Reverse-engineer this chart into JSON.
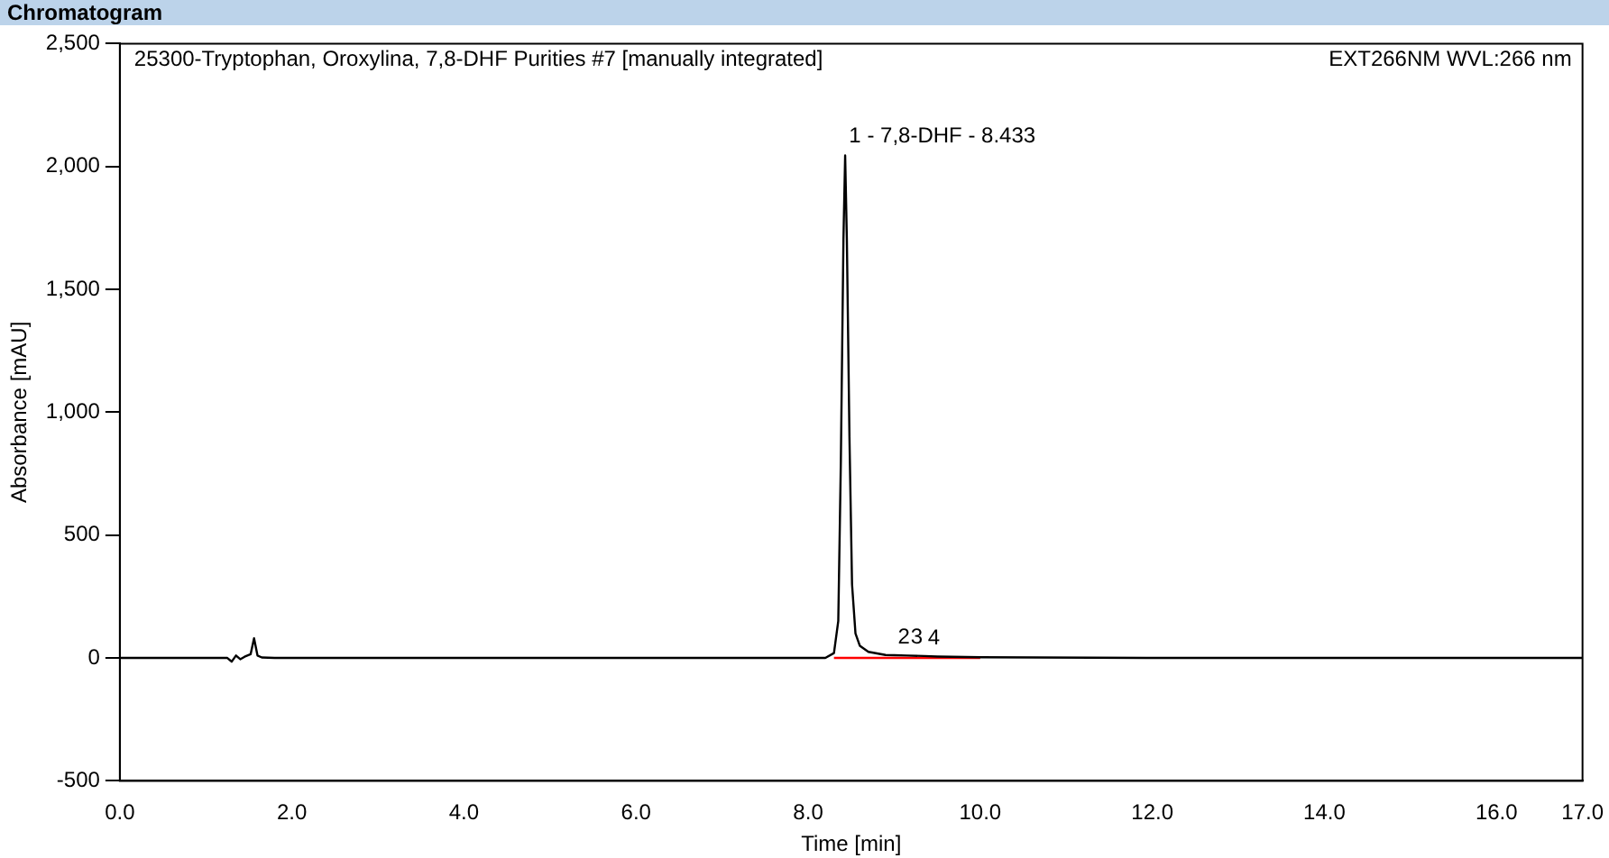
{
  "chart_data": {
    "type": "line",
    "title": "Chromatogram",
    "subtitle": "25300-Tryptophan, Oroxylina, 7,8-DHF Purities #7 [manually integrated]",
    "xlabel": "Time [min]",
    "ylabel": "Absorbance [mAU]",
    "annotations": [
      {
        "text": "1 - 7,8-DHF - 8.433",
        "x": 8.433,
        "y": 2050
      },
      {
        "text": "2",
        "x": 9.0,
        "y": 11
      },
      {
        "text": "3",
        "x": 9.15,
        "y": 10
      },
      {
        "text": "4",
        "x": 9.35,
        "y": 8
      },
      "EXT266NM WVL:266 nm"
    ],
    "series": [
      {
        "color": "#000000",
        "x": [
          0,
          1.25,
          1.3,
          1.35,
          1.4,
          1.45,
          1.52,
          1.56,
          1.6,
          1.65,
          1.8,
          3,
          6,
          8.2,
          8.3,
          8.35,
          8.38,
          8.41,
          8.43,
          8.45,
          8.48,
          8.51,
          8.55,
          8.6,
          8.7,
          8.9,
          9.0,
          9.15,
          9.35,
          9.5,
          10,
          12,
          17
        ],
        "values": [
          0,
          0,
          -15,
          10,
          -5,
          5,
          15,
          80,
          10,
          2,
          0,
          0,
          0,
          0,
          20,
          150,
          800,
          1700,
          2045,
          1700,
          900,
          300,
          100,
          50,
          25,
          12,
          11,
          10,
          8,
          6,
          3,
          0,
          0
        ]
      },
      {
        "color": "#ff0000",
        "x": [
          8.3,
          10.0
        ],
        "values": [
          0,
          0
        ]
      }
    ],
    "xlim": [
      0,
      17
    ],
    "xticks": [
      {
        "value": 0,
        "label": "0.0"
      },
      {
        "value": 2,
        "label": "2.0"
      },
      {
        "value": 4,
        "label": "4.0"
      },
      {
        "value": 6,
        "label": "6.0"
      },
      {
        "value": 8,
        "label": "8.0"
      },
      {
        "value": 10,
        "label": "10.0"
      },
      {
        "value": 12,
        "label": "12.0"
      },
      {
        "value": 14,
        "label": "14.0"
      },
      {
        "value": 16,
        "label": "16.0"
      },
      {
        "value": 17,
        "label": "17.0"
      }
    ],
    "ylim": [
      -500,
      2500
    ],
    "yticks": [
      -500,
      0,
      500,
      {
        "value": 1000,
        "label": "1,000"
      },
      {
        "value": 1500,
        "label": "1,500"
      },
      {
        "value": 2000,
        "label": "2,000"
      },
      {
        "value": 2500,
        "label": "2,500"
      }
    ],
    "grid": false,
    "legend": false
  }
}
